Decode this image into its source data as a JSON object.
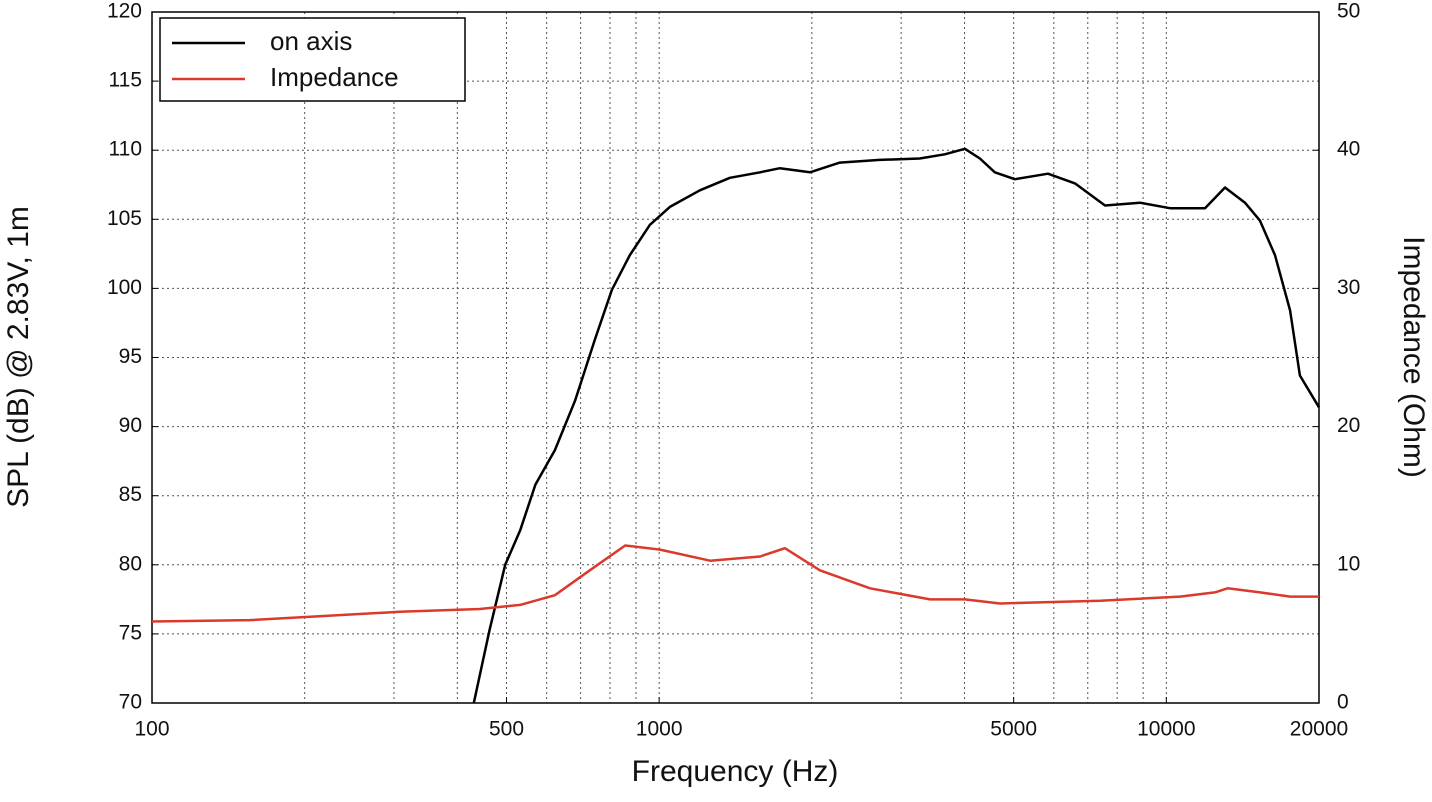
{
  "chart_data": {
    "type": "line",
    "xlabel": "Frequency (Hz)",
    "ylabel": "SPL (dB) @ 2.83V, 1m",
    "y2label": "Impedance (Ohm)",
    "xscale": "log",
    "xlim": [
      100,
      20000
    ],
    "xticks": [
      100,
      500,
      1000,
      5000,
      10000,
      20000
    ],
    "x_minor_grid": [
      200,
      300,
      400,
      600,
      700,
      800,
      900,
      2000,
      3000,
      4000,
      6000,
      7000,
      8000,
      9000
    ],
    "ylim": [
      70,
      120
    ],
    "yticks": [
      70,
      75,
      80,
      85,
      90,
      95,
      100,
      105,
      110,
      115,
      120
    ],
    "y2lim": [
      0,
      50
    ],
    "y2ticks": [
      0,
      10,
      20,
      30,
      40,
      50
    ],
    "grid": true,
    "legend": "upper left",
    "series": [
      {
        "name": "on axis",
        "color": "#000000",
        "x": [
          431,
          463,
          497,
          532,
          570,
          623,
          683,
          747,
          807,
          875,
          959,
          1050,
          1203,
          1379,
          1581,
          1730,
          1983,
          2271,
          2722,
          3264,
          3658,
          4008,
          4289,
          4590,
          5027,
          5844,
          6607,
          7569,
          8872,
          10170,
          11920,
          13050,
          14290,
          15300,
          16380,
          17540,
          18340,
          20000
        ],
        "values": [
          70,
          75.3,
          80,
          82.5,
          85.8,
          88.3,
          91.9,
          96.3,
          99.9,
          102.4,
          104.6,
          105.9,
          107.1,
          108.0,
          108.4,
          108.7,
          108.4,
          109.1,
          109.3,
          109.4,
          109.7,
          110.1,
          109.4,
          108.4,
          107.9,
          108.3,
          107.6,
          106.0,
          106.2,
          105.8,
          105.8,
          107.3,
          106.2,
          104.9,
          102.4,
          98.4,
          93.7,
          91.4
        ]
      },
      {
        "name": "Impedance",
        "color": "#d93a2b",
        "axis": "y2",
        "x": [
          100,
          156,
          308,
          443,
          532,
          623,
          730,
          857,
          1004,
          1260,
          1581,
          1770,
          2075,
          2604,
          3420,
          4008,
          4700,
          7400,
          10640,
          12470,
          13210,
          15300,
          17540,
          20000
        ],
        "values": [
          5.9,
          6.0,
          6.6,
          6.8,
          7.1,
          7.8,
          9.6,
          11.4,
          11.1,
          10.3,
          10.6,
          11.2,
          9.6,
          8.3,
          7.5,
          7.5,
          7.2,
          7.4,
          7.7,
          8.0,
          8.3,
          8.0,
          7.7,
          7.7
        ]
      }
    ]
  }
}
